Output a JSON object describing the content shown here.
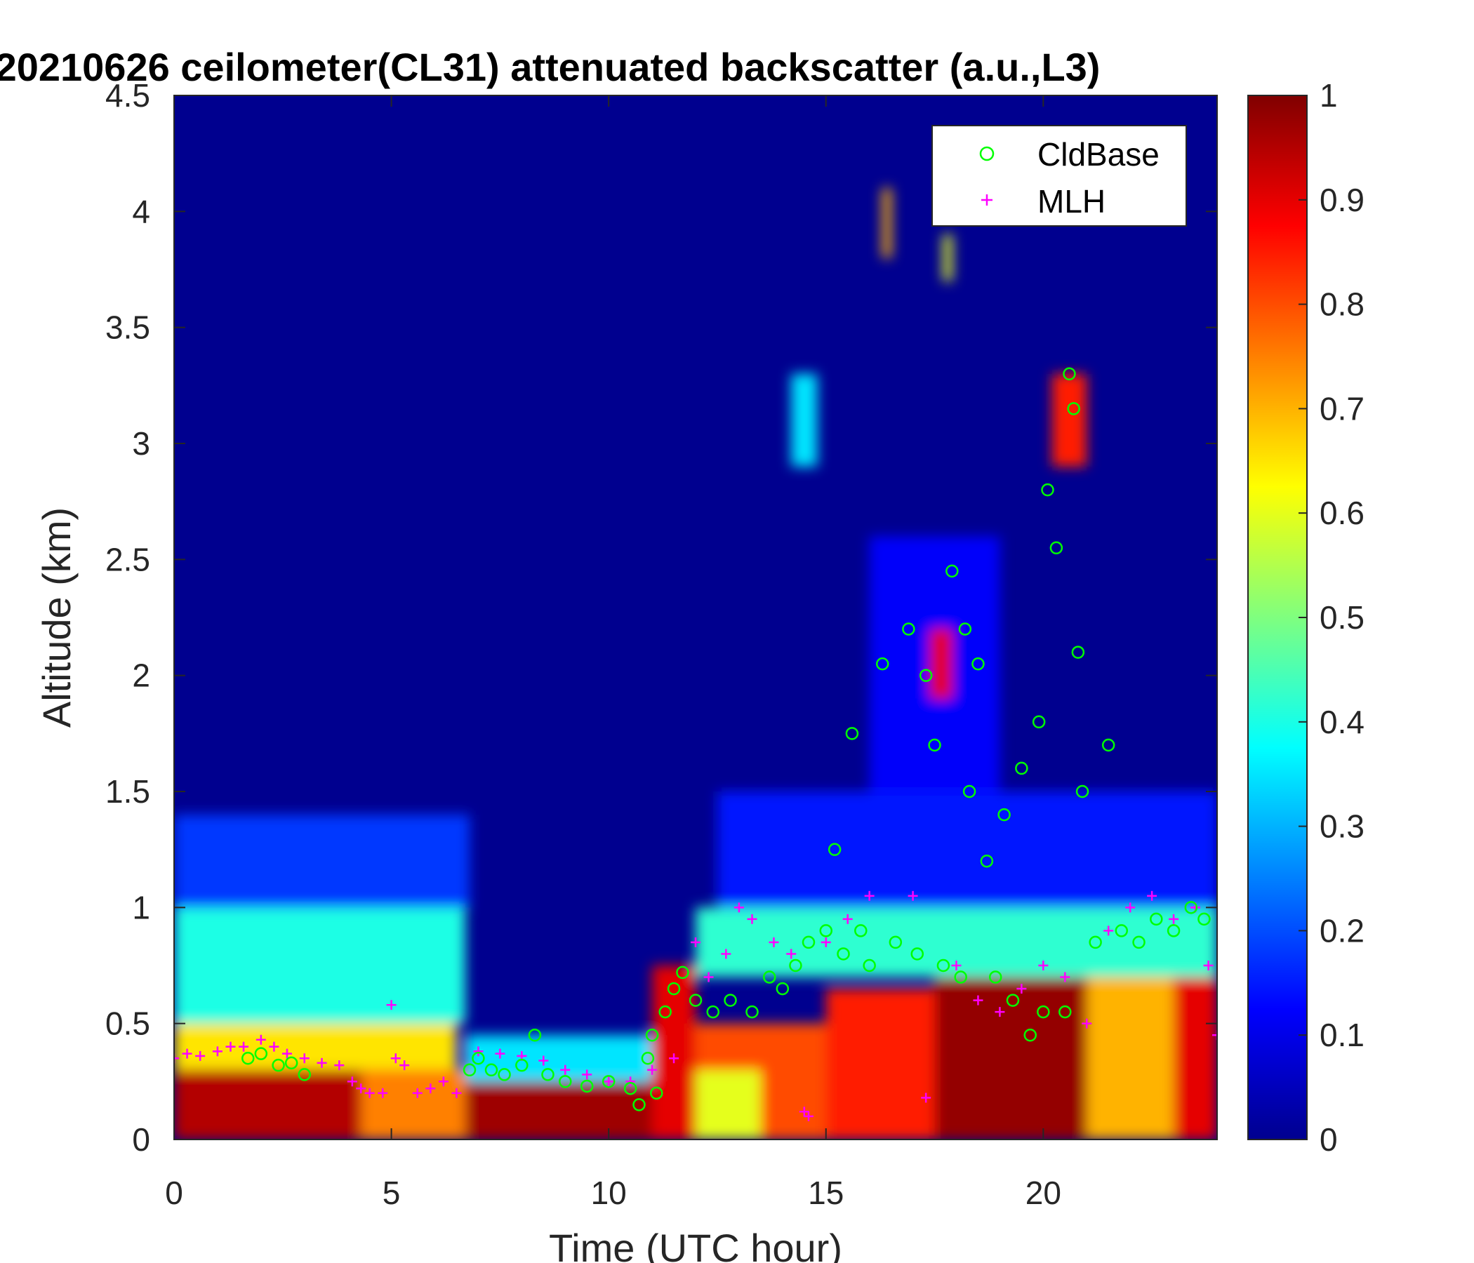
{
  "chart_data": {
    "type": "heatmap",
    "title": "20210626 ceilometer(CL31) attenuated backscatter (a.u.,L3)",
    "xlabel": "Time (UTC hour)",
    "ylabel": "Altitude (km)",
    "xlim": [
      0,
      24
    ],
    "ylim": [
      0,
      4.5
    ],
    "x_ticks": [
      "0",
      "5",
      "10",
      "15",
      "20"
    ],
    "y_ticks": [
      "0",
      "0.5",
      "1",
      "1.5",
      "2",
      "2.5",
      "3",
      "3.5",
      "4",
      "4.5"
    ],
    "colorbar": {
      "colormap": "jet",
      "range": [
        0,
        1
      ],
      "ticks": [
        "0",
        "0.1",
        "0.2",
        "0.3",
        "0.4",
        "0.5",
        "0.6",
        "0.7",
        "0.8",
        "0.9",
        "1"
      ]
    },
    "legend": {
      "position": "top-right",
      "entries": [
        {
          "label": "CldBase",
          "marker": "circle",
          "color": "#00ff00"
        },
        {
          "label": "MLH",
          "marker": "plus",
          "color": "#ff00ff"
        }
      ]
    },
    "features": [
      {
        "t0": 0,
        "t1": 4.3,
        "z0": 0,
        "z1": 0.35,
        "value": 0.95
      },
      {
        "t0": 0,
        "t1": 6.5,
        "z0": 0.3,
        "z1": 0.5,
        "value": 0.65
      },
      {
        "t0": 0,
        "t1": 6.7,
        "z0": 0.5,
        "z1": 1.0,
        "value": 0.4
      },
      {
        "t0": 0,
        "t1": 6.8,
        "z0": 1.0,
        "z1": 1.4,
        "value": 0.18
      },
      {
        "t0": 4.3,
        "t1": 6.7,
        "z0": 0,
        "z1": 0.3,
        "value": 0.75
      },
      {
        "t0": 6.7,
        "t1": 11.0,
        "z0": 0,
        "z1": 0.25,
        "value": 0.97
      },
      {
        "t0": 6.7,
        "t1": 11.0,
        "z0": 0.25,
        "z1": 0.45,
        "value": 0.35
      },
      {
        "t0": 11.0,
        "t1": 12.0,
        "z0": 0,
        "z1": 0.75,
        "value": 0.9
      },
      {
        "t0": 12.0,
        "t1": 15.0,
        "z0": 0,
        "z1": 0.5,
        "value": 0.8
      },
      {
        "t0": 12.0,
        "t1": 13.5,
        "z0": 0,
        "z1": 0.3,
        "value": 0.6
      },
      {
        "t0": 15.0,
        "t1": 17.5,
        "z0": 0,
        "z1": 0.65,
        "value": 0.85
      },
      {
        "t0": 17.5,
        "t1": 21.0,
        "z0": 0,
        "z1": 0.75,
        "value": 0.98
      },
      {
        "t0": 21.0,
        "t1": 23.0,
        "z0": 0,
        "z1": 0.85,
        "value": 0.7
      },
      {
        "t0": 23.0,
        "t1": 24.0,
        "z0": 0,
        "z1": 0.85,
        "value": 0.9
      },
      {
        "t0": 12.0,
        "t1": 24.0,
        "z0": 0.7,
        "z1": 1.0,
        "value": 0.42
      },
      {
        "t0": 12.5,
        "t1": 24.0,
        "z0": 1.0,
        "z1": 1.5,
        "value": 0.15
      },
      {
        "t0": 16.0,
        "t1": 19.0,
        "z0": 1.5,
        "z1": 2.6,
        "value": 0.12
      },
      {
        "t0": 14.2,
        "t1": 14.8,
        "z0": 2.9,
        "z1": 3.3,
        "value": 0.35
      },
      {
        "t0": 17.4,
        "t1": 17.9,
        "z0": 1.9,
        "z1": 2.2,
        "value": 0.9
      },
      {
        "t0": 20.2,
        "t1": 21.0,
        "z0": 2.9,
        "z1": 3.3,
        "value": 0.85
      },
      {
        "t0": 16.3,
        "t1": 16.5,
        "z0": 3.8,
        "z1": 4.1,
        "value": 0.7
      },
      {
        "t0": 17.7,
        "t1": 17.9,
        "z0": 3.7,
        "z1": 3.9,
        "value": 0.6
      }
    ],
    "series": [
      {
        "name": "CldBase",
        "x": [
          1.7,
          2.0,
          2.4,
          2.7,
          3.0,
          6.8,
          7.0,
          7.3,
          7.6,
          8.0,
          8.3,
          8.6,
          9.0,
          9.5,
          10.0,
          10.5,
          10.7,
          10.9,
          11.0,
          11.1,
          11.3,
          11.5,
          11.7,
          12.0,
          12.4,
          12.8,
          13.3,
          13.7,
          14.0,
          14.3,
          14.6,
          15.0,
          15.2,
          15.4,
          15.6,
          15.8,
          16.0,
          16.3,
          16.6,
          16.9,
          17.1,
          17.3,
          17.5,
          17.7,
          17.9,
          18.1,
          18.2,
          18.3,
          18.5,
          18.7,
          18.9,
          19.1,
          19.3,
          19.5,
          19.7,
          19.9,
          20.0,
          20.1,
          20.3,
          20.5,
          20.6,
          20.7,
          20.8,
          20.9,
          21.2,
          21.5,
          21.8,
          22.2,
          22.6,
          23.0,
          23.4,
          23.7
        ],
        "y": [
          0.35,
          0.37,
          0.32,
          0.33,
          0.28,
          0.3,
          0.35,
          0.3,
          0.28,
          0.32,
          0.45,
          0.28,
          0.25,
          0.23,
          0.25,
          0.22,
          0.15,
          0.35,
          0.45,
          0.2,
          0.55,
          0.65,
          0.72,
          0.6,
          0.55,
          0.6,
          0.55,
          0.7,
          0.65,
          0.75,
          0.85,
          0.9,
          1.25,
          0.8,
          1.75,
          0.9,
          0.75,
          2.05,
          0.85,
          2.2,
          0.8,
          2.0,
          1.7,
          0.75,
          2.45,
          0.7,
          2.2,
          1.5,
          2.05,
          1.2,
          0.7,
          1.4,
          0.6,
          1.6,
          0.45,
          1.8,
          0.55,
          2.8,
          2.55,
          0.55,
          3.3,
          3.15,
          2.1,
          1.5,
          0.85,
          1.7,
          0.9,
          0.85,
          0.95,
          0.9,
          1.0,
          0.95
        ]
      },
      {
        "name": "MLH",
        "x": [
          0.0,
          0.3,
          0.6,
          1.0,
          1.3,
          1.6,
          2.0,
          2.3,
          2.6,
          3.0,
          3.4,
          3.8,
          4.1,
          4.3,
          4.5,
          4.8,
          5.0,
          5.1,
          5.3,
          5.6,
          5.9,
          6.2,
          6.5,
          7.0,
          7.5,
          8.0,
          8.5,
          9.0,
          9.5,
          10.0,
          10.5,
          11.0,
          11.5,
          12.0,
          12.3,
          12.7,
          13.0,
          13.3,
          13.8,
          14.2,
          14.5,
          14.6,
          15.0,
          15.5,
          16.0,
          17.0,
          17.3,
          18.0,
          18.5,
          19.0,
          19.5,
          20.0,
          20.5,
          21.0,
          21.5,
          22.0,
          22.5,
          23.0,
          23.5,
          23.8,
          24.0
        ],
        "y": [
          0.35,
          0.37,
          0.36,
          0.38,
          0.4,
          0.4,
          0.43,
          0.4,
          0.37,
          0.35,
          0.33,
          0.32,
          0.25,
          0.22,
          0.2,
          0.2,
          0.58,
          0.35,
          0.32,
          0.2,
          0.22,
          0.25,
          0.2,
          0.38,
          0.37,
          0.36,
          0.34,
          0.3,
          0.28,
          0.25,
          0.25,
          0.3,
          0.35,
          0.85,
          0.7,
          0.8,
          1.0,
          0.95,
          0.85,
          0.8,
          0.12,
          0.1,
          0.85,
          0.95,
          1.05,
          1.05,
          0.18,
          0.75,
          0.6,
          0.55,
          0.65,
          0.75,
          0.7,
          0.5,
          0.9,
          1.0,
          1.05,
          0.95,
          1.0,
          0.75,
          0.45
        ]
      }
    ]
  }
}
